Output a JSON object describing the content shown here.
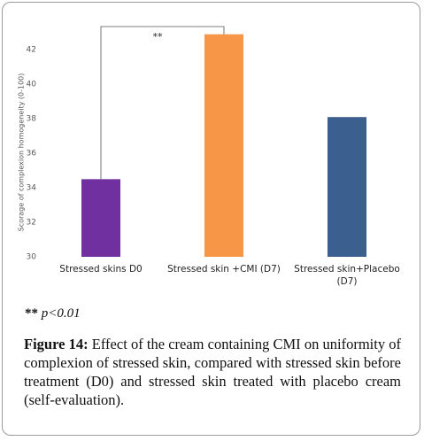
{
  "chart_data": {
    "type": "bar",
    "y_label": "Scorage of complexion homogeneity (0-100)",
    "categories": [
      "Stressed skins D0",
      "Stressed skin +CMI (D7)",
      "Stressed skin+Placebo (D7)"
    ],
    "values": [
      34.5,
      42.9,
      38.1
    ],
    "colors": [
      "#7030a0",
      "#f79646",
      "#3b5f8e"
    ],
    "ylim": [
      30,
      43.5
    ],
    "yticks": [
      30,
      32,
      34,
      36,
      38,
      40,
      42
    ],
    "grid": false,
    "annotation": "**",
    "footnote_marker": "**",
    "footnote_text": "p<0.01",
    "caption_label": "Figure 14:",
    "caption_text": "Effect of the cream containing CMI on uniformity of complexion of stressed skin, compared with stressed skin before treatment (D0) and stressed skin treated with placebo cream (self-evaluation)."
  }
}
